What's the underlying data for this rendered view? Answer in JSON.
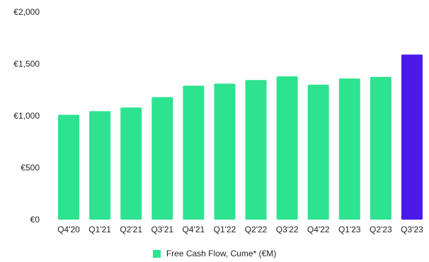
{
  "chart_data": {
    "type": "bar",
    "categories": [
      "Q4'20",
      "Q1'21",
      "Q2'21",
      "Q3'21",
      "Q4'21",
      "Q1'22",
      "Q2'22",
      "Q3'22",
      "Q4'22",
      "Q1'23",
      "Q2'23",
      "Q3'23"
    ],
    "series": [
      {
        "name": "Free Cash Flow, Cume* (€M)",
        "values": [
          1010,
          1045,
          1080,
          1180,
          1290,
          1310,
          1345,
          1380,
          1300,
          1360,
          1375,
          1590
        ]
      }
    ],
    "highlight_index": 11,
    "ylim": [
      0,
      2000
    ],
    "yticks": [
      0,
      500,
      1000,
      1500,
      2000
    ],
    "ytick_labels": [
      "€0",
      "€500",
      "€1,000",
      "€1,500",
      "€2,000"
    ],
    "grid": false,
    "legend_position": "bottom",
    "colors": {
      "bar": "#2ee38f",
      "highlight": "#4a1aeb"
    }
  },
  "legend": {
    "label": "Free Cash Flow, Cume* (€M)"
  }
}
